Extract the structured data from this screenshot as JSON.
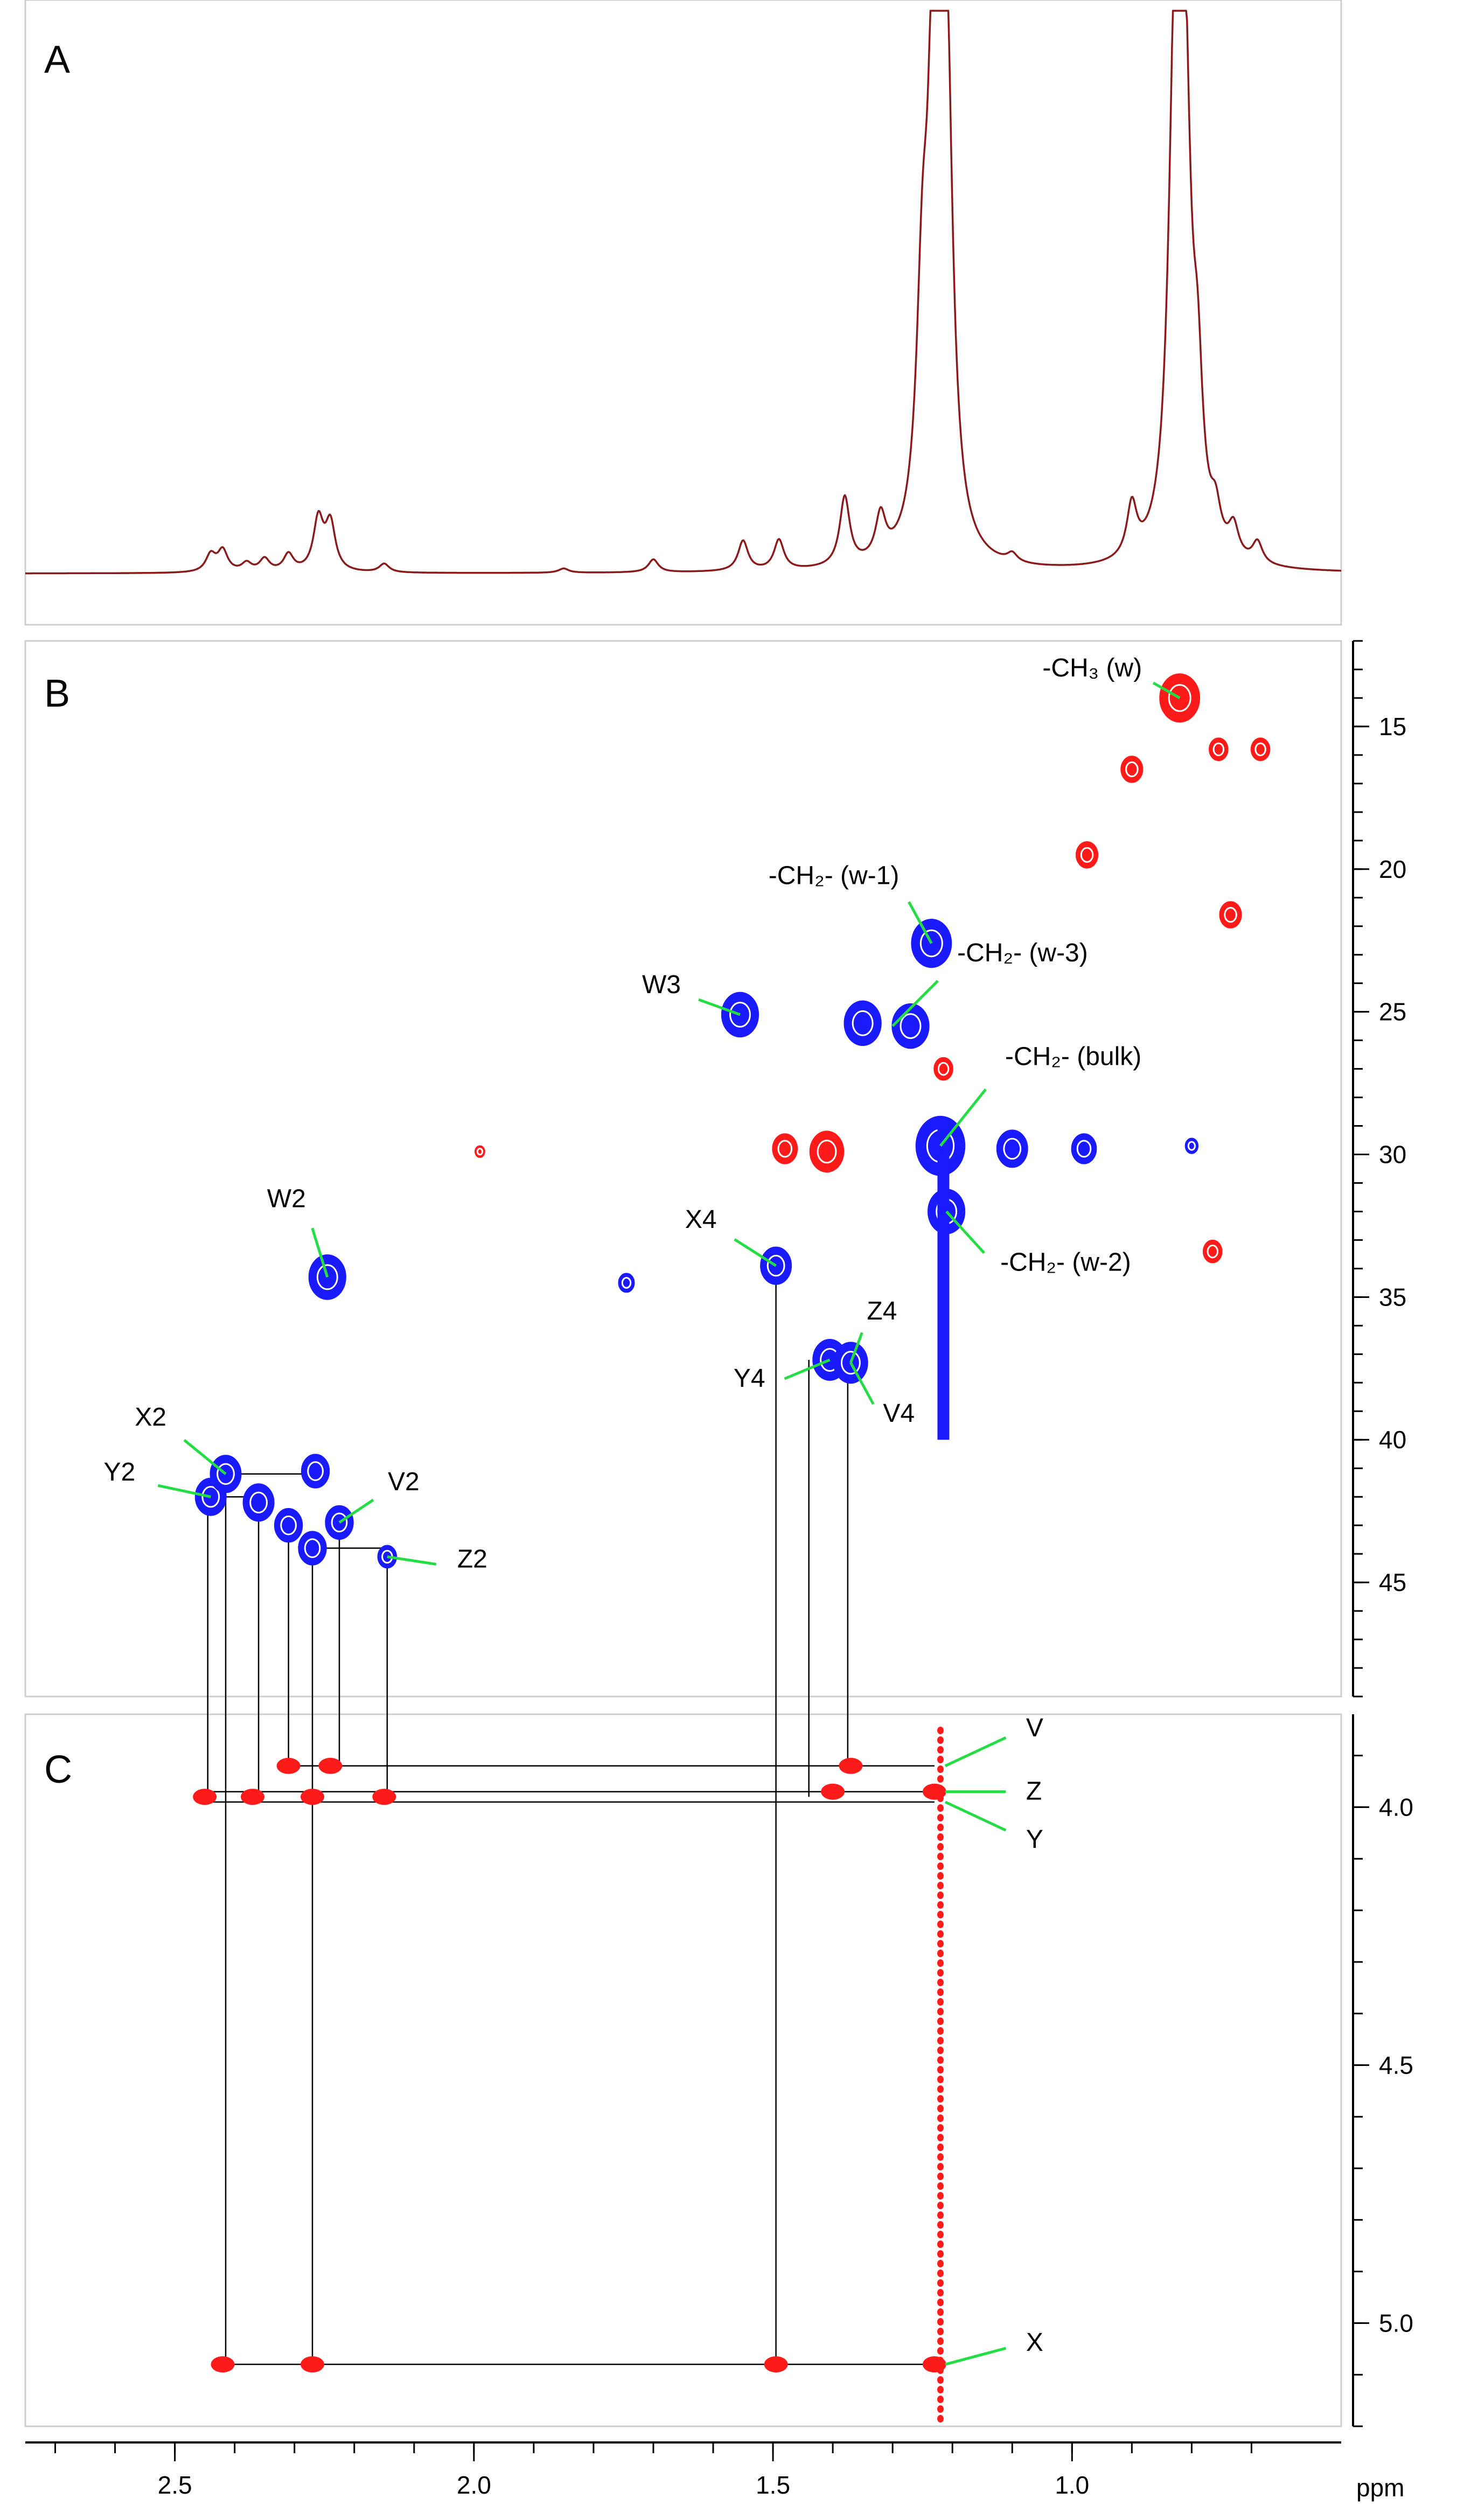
{
  "chart_data": {
    "type": "nmr-spectra",
    "x_axis": {
      "label": "ppm",
      "range": [
        2.75,
        0.55
      ],
      "ticks": [
        2.5,
        2.0,
        1.5,
        1.0
      ],
      "tick_labels": [
        "2.5",
        "2.0",
        "1.5",
        "1.0"
      ],
      "minor_step": 0.1
    },
    "panel_a": {
      "label": "A",
      "kind": "1H spectrum",
      "line_color": "#8b1a1a",
      "peaks": [
        {
          "ppm": 2.44,
          "height": 0.04
        },
        {
          "ppm": 2.42,
          "height": 0.05
        },
        {
          "ppm": 2.38,
          "height": 0.02
        },
        {
          "ppm": 2.35,
          "height": 0.03
        },
        {
          "ppm": 2.31,
          "height": 0.04
        },
        {
          "ppm": 2.26,
          "height": 0.12
        },
        {
          "ppm": 2.24,
          "height": 0.11
        },
        {
          "ppm": 2.15,
          "height": 0.02
        },
        {
          "ppm": 1.85,
          "height": 0.01
        },
        {
          "ppm": 1.7,
          "height": 0.03
        },
        {
          "ppm": 1.55,
          "height": 0.07
        },
        {
          "ppm": 1.49,
          "height": 0.07
        },
        {
          "ppm": 1.38,
          "height": 0.16
        },
        {
          "ppm": 1.32,
          "height": 0.1
        },
        {
          "ppm": 1.25,
          "height": 0.5
        },
        {
          "ppm": 1.23,
          "height": 1.2
        },
        {
          "ppm": 1.21,
          "height": 1.1
        },
        {
          "ppm": 1.1,
          "height": 0.02
        },
        {
          "ppm": 0.9,
          "height": 0.12
        },
        {
          "ppm": 0.83,
          "height": 0.6
        },
        {
          "ppm": 0.82,
          "height": 1.1
        },
        {
          "ppm": 0.81,
          "height": 0.55
        },
        {
          "ppm": 0.79,
          "height": 0.3
        },
        {
          "ppm": 0.76,
          "height": 0.08
        },
        {
          "ppm": 0.73,
          "height": 0.07
        },
        {
          "ppm": 0.69,
          "height": 0.05
        }
      ]
    },
    "panel_b": {
      "label": "B",
      "kind": "1H-13C HSQC",
      "y_axis": {
        "range": [
          12,
          49
        ],
        "ticks": [
          15,
          20,
          25,
          30,
          35,
          40,
          45
        ],
        "tick_labels": [
          "15",
          "20",
          "25",
          "30",
          "35",
          "40",
          "45"
        ]
      },
      "positive_color": "#1a1aff",
      "negative_color": "#ff1a1a",
      "peaks": [
        {
          "x": 2.245,
          "y": 34.3,
          "sign": "pos",
          "size": 1.2
        },
        {
          "x": 1.555,
          "y": 25.1,
          "sign": "pos",
          "size": 1.2
        },
        {
          "x": 1.495,
          "y": 33.9,
          "sign": "pos",
          "size": 1.0
        },
        {
          "x": 1.745,
          "y": 34.5,
          "sign": "pos",
          "size": 0.5
        },
        {
          "x": 1.405,
          "y": 37.2,
          "sign": "pos",
          "size": 1.1
        },
        {
          "x": 1.37,
          "y": 37.3,
          "sign": "pos",
          "size": 1.1
        },
        {
          "x": 1.235,
          "y": 22.6,
          "sign": "pos",
          "size": 1.3
        },
        {
          "x": 1.35,
          "y": 25.4,
          "sign": "pos",
          "size": 1.2
        },
        {
          "x": 1.27,
          "y": 25.5,
          "sign": "pos",
          "size": 1.2
        },
        {
          "x": 1.22,
          "y": 29.7,
          "sign": "pos",
          "size": 1.6
        },
        {
          "x": 1.1,
          "y": 29.8,
          "sign": "pos",
          "size": 1.0
        },
        {
          "x": 0.98,
          "y": 29.8,
          "sign": "pos",
          "size": 0.8
        },
        {
          "x": 0.8,
          "y": 29.7,
          "sign": "pos",
          "size": 0.4
        },
        {
          "x": 1.21,
          "y": 32.0,
          "sign": "pos",
          "size": 1.2
        },
        {
          "x": 2.44,
          "y": 42.0,
          "sign": "pos",
          "size": 1.0
        },
        {
          "x": 2.415,
          "y": 41.2,
          "sign": "pos",
          "size": 1.0
        },
        {
          "x": 2.36,
          "y": 42.2,
          "sign": "pos",
          "size": 1.0
        },
        {
          "x": 2.31,
          "y": 43.0,
          "sign": "pos",
          "size": 0.9
        },
        {
          "x": 2.27,
          "y": 43.8,
          "sign": "pos",
          "size": 0.9
        },
        {
          "x": 2.265,
          "y": 41.1,
          "sign": "pos",
          "size": 0.9
        },
        {
          "x": 2.225,
          "y": 42.9,
          "sign": "pos",
          "size": 0.9
        },
        {
          "x": 2.145,
          "y": 44.1,
          "sign": "pos",
          "size": 0.6
        },
        {
          "x": 0.82,
          "y": 14.0,
          "sign": "neg",
          "size": 1.3
        },
        {
          "x": 0.9,
          "y": 16.5,
          "sign": "neg",
          "size": 0.7
        },
        {
          "x": 0.755,
          "y": 15.8,
          "sign": "neg",
          "size": 0.6
        },
        {
          "x": 0.685,
          "y": 15.8,
          "sign": "neg",
          "size": 0.6
        },
        {
          "x": 0.975,
          "y": 19.5,
          "sign": "neg",
          "size": 0.7
        },
        {
          "x": 0.735,
          "y": 21.6,
          "sign": "neg",
          "size": 0.7
        },
        {
          "x": 1.215,
          "y": 27.0,
          "sign": "neg",
          "size": 0.6
        },
        {
          "x": 1.48,
          "y": 29.8,
          "sign": "neg",
          "size": 0.8
        },
        {
          "x": 1.41,
          "y": 29.9,
          "sign": "neg",
          "size": 1.1
        },
        {
          "x": 1.99,
          "y": 29.9,
          "sign": "neg",
          "size": 0.3
        },
        {
          "x": 0.765,
          "y": 33.4,
          "sign": "neg",
          "size": 0.6
        }
      ],
      "annotations": [
        {
          "text": "-CH₃ (w)",
          "x": 0.82,
          "y": 14.0
        },
        {
          "text": "-CH₂- (w-1)",
          "x": 1.235,
          "y": 22.6
        },
        {
          "text": "-CH₂- (w-3)",
          "x": 1.3,
          "y": 25.5
        },
        {
          "text": "-CH₂- (bulk)",
          "x": 1.22,
          "y": 29.7
        },
        {
          "text": "-CH₂- (w-2)",
          "x": 1.21,
          "y": 32.0
        },
        {
          "text": "W3",
          "x": 1.555,
          "y": 25.1
        },
        {
          "text": "W2",
          "x": 2.245,
          "y": 34.3
        },
        {
          "text": "X4",
          "x": 1.495,
          "y": 33.9
        },
        {
          "text": "Z4",
          "x": 1.37,
          "y": 37.3
        },
        {
          "text": "Y4",
          "x": 1.405,
          "y": 37.2
        },
        {
          "text": "V4",
          "x": 1.37,
          "y": 37.3
        },
        {
          "text": "X2",
          "x": 2.415,
          "y": 41.2
        },
        {
          "text": "Y2",
          "x": 2.44,
          "y": 42.0
        },
        {
          "text": "V2",
          "x": 2.225,
          "y": 42.9
        },
        {
          "text": "Z2",
          "x": 2.145,
          "y": 44.1
        }
      ]
    },
    "panel_c": {
      "label": "C",
      "kind": "1H-1H COSY strip",
      "y_axis": {
        "range": [
          3.82,
          5.2
        ],
        "ticks": [
          4.0,
          4.5,
          5.0
        ],
        "tick_labels": [
          "4.0",
          "4.5",
          "5.0"
        ]
      },
      "color": "#ff1a1a",
      "peaks": [
        {
          "x": 2.45,
          "y": 3.98
        },
        {
          "x": 2.37,
          "y": 3.98
        },
        {
          "x": 2.27,
          "y": 3.98
        },
        {
          "x": 2.15,
          "y": 3.98
        },
        {
          "x": 2.31,
          "y": 3.92
        },
        {
          "x": 2.24,
          "y": 3.92
        },
        {
          "x": 1.4,
          "y": 3.97
        },
        {
          "x": 1.37,
          "y": 3.92
        },
        {
          "x": 1.23,
          "y": 3.97
        },
        {
          "x": 2.42,
          "y": 5.08
        },
        {
          "x": 2.27,
          "y": 5.08
        },
        {
          "x": 1.495,
          "y": 5.08
        },
        {
          "x": 1.23,
          "y": 5.08
        }
      ],
      "annotations": [
        {
          "text": "V",
          "x": 1.23,
          "y": 3.92
        },
        {
          "text": "Z",
          "x": 1.23,
          "y": 3.97
        },
        {
          "text": "Y",
          "x": 1.23,
          "y": 3.99
        },
        {
          "text": "X",
          "x": 1.23,
          "y": 5.08
        }
      ]
    }
  }
}
